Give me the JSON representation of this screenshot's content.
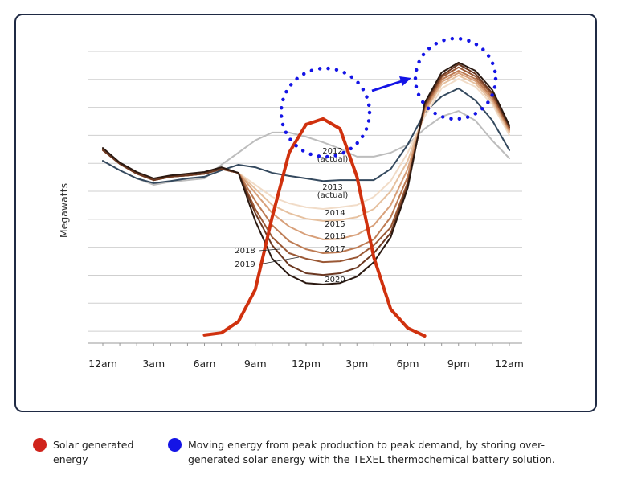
{
  "chart_data": {
    "type": "line",
    "y_label": "Megawatts",
    "categories": [
      "12am",
      null,
      null,
      "3am",
      null,
      null,
      "6am",
      null,
      null,
      "9am",
      null,
      null,
      "12pm",
      null,
      null,
      "3pm",
      null,
      null,
      "6pm",
      null,
      null,
      "9pm",
      null,
      null,
      "12am"
    ],
    "ylim": [
      -0.4,
      10
    ],
    "yticks": [
      0,
      1,
      2,
      3,
      4,
      5,
      6,
      7,
      8,
      9,
      10
    ],
    "grid": true,
    "series": [
      {
        "name": "2012",
        "label_note": "(actual)",
        "color": "#bdbdbd",
        "values": [
          6.09,
          5.75,
          5.46,
          5.23,
          5.34,
          5.4,
          5.46,
          5.95,
          6.38,
          6.82,
          7.1,
          7.1,
          6.95,
          6.75,
          6.52,
          6.24,
          6.24,
          6.38,
          6.67,
          7.24,
          7.67,
          7.87,
          7.53,
          6.81,
          6.18
        ]
      },
      {
        "name": "2013",
        "label_note": "(actual)",
        "color": "#34495e",
        "values": [
          6.09,
          5.75,
          5.46,
          5.29,
          5.37,
          5.46,
          5.52,
          5.75,
          5.95,
          5.86,
          5.66,
          5.55,
          5.46,
          5.37,
          5.4,
          5.4,
          5.4,
          5.8,
          6.67,
          7.82,
          8.39,
          8.68,
          8.25,
          7.53,
          6.47
        ]
      },
      {
        "name": "2014",
        "color": "#f1dcc8",
        "values": [
          6.47,
          5.98,
          5.63,
          5.4,
          5.52,
          5.57,
          5.63,
          5.8,
          5.66,
          5.23,
          4.8,
          4.57,
          4.43,
          4.37,
          4.43,
          4.51,
          4.8,
          5.37,
          6.38,
          7.67,
          8.68,
          9.02,
          8.74,
          8.1,
          7.01
        ]
      },
      {
        "name": "2015",
        "color": "#e6c1a0",
        "values": [
          6.47,
          5.98,
          5.63,
          5.4,
          5.52,
          5.57,
          5.63,
          5.8,
          5.66,
          5.09,
          4.51,
          4.22,
          4.02,
          3.94,
          3.97,
          4.08,
          4.37,
          5.0,
          6.09,
          7.82,
          8.82,
          9.14,
          8.85,
          8.19,
          7.1
        ]
      },
      {
        "name": "2016",
        "color": "#d8a07a",
        "values": [
          6.47,
          5.98,
          5.63,
          5.4,
          5.52,
          5.57,
          5.63,
          5.8,
          5.66,
          4.94,
          4.22,
          3.74,
          3.45,
          3.28,
          3.3,
          3.45,
          3.79,
          4.51,
          5.8,
          7.87,
          8.91,
          9.23,
          8.94,
          8.28,
          7.16
        ]
      },
      {
        "name": "2017",
        "color": "#bd7b53",
        "values": [
          6.47,
          5.98,
          5.63,
          5.4,
          5.52,
          5.57,
          5.63,
          5.8,
          5.66,
          4.66,
          3.79,
          3.22,
          2.93,
          2.79,
          2.82,
          2.99,
          3.28,
          4.08,
          5.52,
          7.96,
          9.0,
          9.31,
          9.02,
          8.36,
          7.21
        ]
      },
      {
        "name": "2018",
        "color": "#9a5835",
        "values": [
          6.47,
          5.98,
          5.63,
          5.4,
          5.52,
          5.57,
          5.63,
          5.8,
          5.66,
          4.37,
          3.36,
          2.79,
          2.59,
          2.47,
          2.5,
          2.64,
          3.07,
          3.71,
          5.32,
          8.02,
          9.08,
          9.43,
          9.11,
          8.45,
          7.27
        ]
      },
      {
        "name": "2019",
        "color": "#6b3821",
        "values": [
          6.47,
          5.98,
          5.63,
          5.4,
          5.52,
          5.57,
          5.63,
          5.8,
          5.66,
          4.22,
          3.07,
          2.36,
          2.07,
          2.01,
          2.07,
          2.27,
          2.79,
          3.51,
          5.23,
          8.1,
          9.14,
          9.54,
          9.2,
          8.51,
          7.3
        ]
      },
      {
        "name": "2020",
        "color": "#2a1810",
        "values": [
          6.55,
          6.03,
          5.69,
          5.46,
          5.57,
          5.63,
          5.69,
          5.86,
          5.66,
          3.94,
          2.59,
          2.01,
          1.72,
          1.67,
          1.72,
          1.95,
          2.47,
          3.36,
          5.12,
          8.16,
          9.25,
          9.6,
          9.31,
          8.62,
          7.36
        ]
      },
      {
        "name": "Solar generated energy",
        "color": "#d0310e",
        "width": 4,
        "values": [
          null,
          null,
          null,
          null,
          null,
          null,
          -0.14,
          -0.06,
          0.34,
          1.49,
          4.08,
          6.38,
          7.39,
          7.59,
          7.24,
          5.52,
          2.64,
          0.78,
          0.11,
          -0.17,
          null,
          null,
          null,
          null,
          null
        ]
      }
    ],
    "annotation": "Moving energy from peak production to peak demand, by storing over-generated solar energy with the TEXEL thermochemical battery solution.",
    "annotation_color": "#1414e6"
  }
}
